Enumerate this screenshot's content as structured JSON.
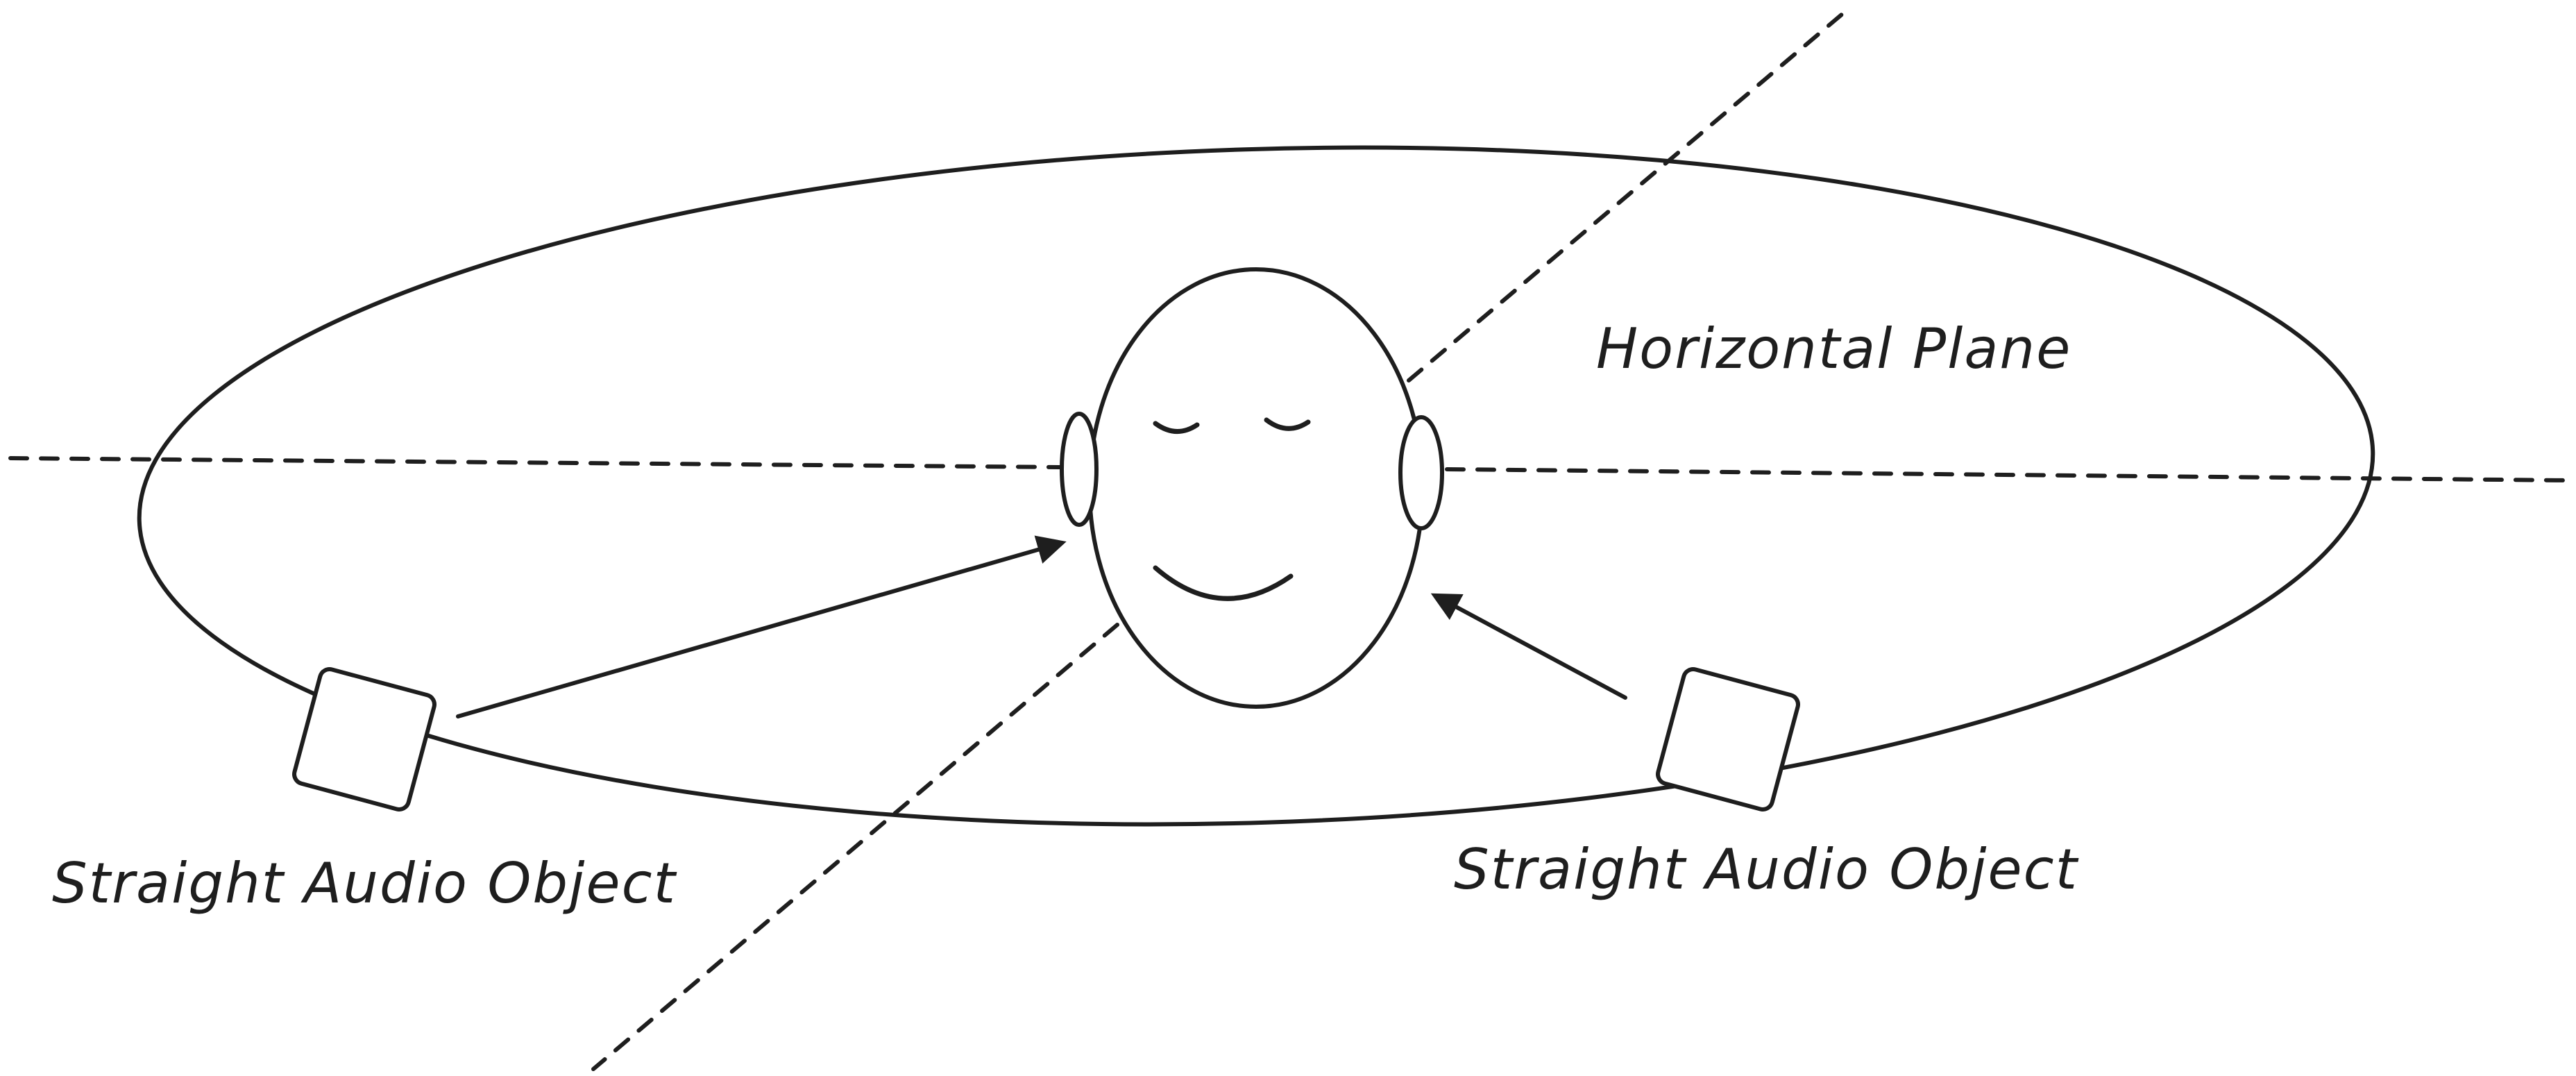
{
  "diagram": {
    "plane_label": "Horizontal Plane",
    "source_left_label": "Straight Audio Object",
    "source_right_label": "Straight Audio Object"
  },
  "colors": {
    "ink": "#1e1e1e",
    "background": "#ffffff"
  },
  "icons": {
    "listener": "head-icon",
    "source": "speaker-box-icon"
  }
}
